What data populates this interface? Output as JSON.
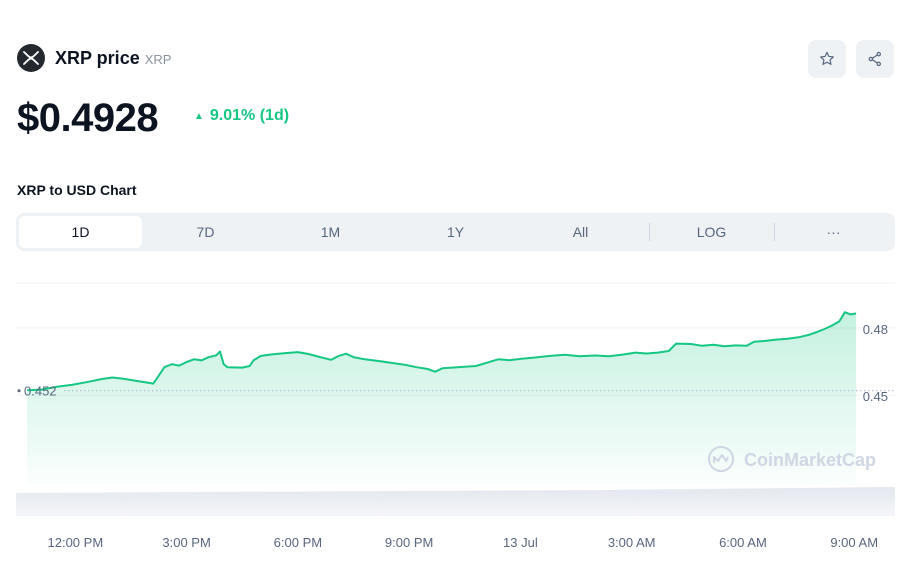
{
  "coin": {
    "name": "XRP price",
    "symbol": "XRP"
  },
  "price": "$0.4928",
  "change": {
    "arrow": "▲",
    "text": "9.01% (1d)"
  },
  "chart_heading": "XRP to USD Chart",
  "tabs": [
    {
      "label": "1D",
      "active": true
    },
    {
      "label": "7D"
    },
    {
      "label": "1M"
    },
    {
      "label": "1Y"
    },
    {
      "label": "All"
    },
    {
      "label": "LOG"
    },
    {
      "label": "···"
    }
  ],
  "icons": {
    "logo": "xrp-logo-icon",
    "star": "star-icon",
    "share": "share-icon"
  },
  "colors": {
    "line": "#16c784",
    "text": "#0d1421",
    "muted": "#58667e",
    "tab_bg": "#eff2f5"
  },
  "chart_data": {
    "type": "area",
    "title": "XRP to USD Chart",
    "x_ticks": [
      "12:00 PM",
      "3:00 PM",
      "6:00 PM",
      "9:00 PM",
      "13 Jul",
      "3:00 AM",
      "6:00 AM",
      "9:00 AM"
    ],
    "x_tick_hours": [
      2,
      5,
      8,
      11,
      14,
      17,
      20,
      23
    ],
    "x_range_hours": [
      0.4,
      24.1
    ],
    "y_range": [
      0.41,
      0.5
    ],
    "y_ticks": [
      0.45,
      0.48
    ],
    "open_label": "0.452",
    "open_value": 0.452,
    "watermark": "CoinMarketCap",
    "series": [
      {
        "points": [
          [
            0.7,
            0.4522
          ],
          [
            1.1,
            0.4525
          ],
          [
            1.5,
            0.4538
          ],
          [
            1.9,
            0.4546
          ],
          [
            2.3,
            0.4558
          ],
          [
            2.7,
            0.4572
          ],
          [
            3.0,
            0.4579
          ],
          [
            3.3,
            0.4573
          ],
          [
            3.6,
            0.4565
          ],
          [
            3.9,
            0.4557
          ],
          [
            4.1,
            0.4552
          ],
          [
            4.2,
            0.4575
          ],
          [
            4.4,
            0.4625
          ],
          [
            4.6,
            0.4638
          ],
          [
            4.8,
            0.4632
          ],
          [
            5.0,
            0.4648
          ],
          [
            5.2,
            0.466
          ],
          [
            5.4,
            0.4655
          ],
          [
            5.6,
            0.467
          ],
          [
            5.8,
            0.4678
          ],
          [
            5.9,
            0.4695
          ],
          [
            6.0,
            0.4638
          ],
          [
            6.1,
            0.4625
          ],
          [
            6.5,
            0.4623
          ],
          [
            6.7,
            0.463
          ],
          [
            6.8,
            0.4655
          ],
          [
            7.0,
            0.4675
          ],
          [
            7.3,
            0.4682
          ],
          [
            7.7,
            0.4688
          ],
          [
            8.0,
            0.4692
          ],
          [
            8.3,
            0.4683
          ],
          [
            8.6,
            0.467
          ],
          [
            8.9,
            0.4658
          ],
          [
            9.1,
            0.4675
          ],
          [
            9.3,
            0.4685
          ],
          [
            9.5,
            0.467
          ],
          [
            9.8,
            0.466
          ],
          [
            10.2,
            0.4652
          ],
          [
            10.5,
            0.4645
          ],
          [
            10.9,
            0.4635
          ],
          [
            11.2,
            0.4625
          ],
          [
            11.5,
            0.4617
          ],
          [
            11.7,
            0.4605
          ],
          [
            11.9,
            0.462
          ],
          [
            12.3,
            0.4625
          ],
          [
            12.8,
            0.463
          ],
          [
            13.1,
            0.4645
          ],
          [
            13.4,
            0.466
          ],
          [
            13.7,
            0.4656
          ],
          [
            14.0,
            0.4662
          ],
          [
            14.4,
            0.4668
          ],
          [
            14.8,
            0.4675
          ],
          [
            15.2,
            0.468
          ],
          [
            15.6,
            0.4674
          ],
          [
            16.0,
            0.4677
          ],
          [
            16.4,
            0.4674
          ],
          [
            16.8,
            0.4682
          ],
          [
            17.1,
            0.469
          ],
          [
            17.4,
            0.4686
          ],
          [
            17.7,
            0.469
          ],
          [
            18.0,
            0.4697
          ],
          [
            18.2,
            0.473
          ],
          [
            18.6,
            0.4728
          ],
          [
            18.9,
            0.472
          ],
          [
            19.2,
            0.4725
          ],
          [
            19.5,
            0.4718
          ],
          [
            19.8,
            0.4722
          ],
          [
            20.1,
            0.472
          ],
          [
            20.3,
            0.4738
          ],
          [
            20.6,
            0.4742
          ],
          [
            20.9,
            0.4748
          ],
          [
            21.2,
            0.4752
          ],
          [
            21.5,
            0.4758
          ],
          [
            21.8,
            0.477
          ],
          [
            22.0,
            0.4782
          ],
          [
            22.2,
            0.4795
          ],
          [
            22.4,
            0.481
          ],
          [
            22.6,
            0.483
          ],
          [
            22.75,
            0.487
          ],
          [
            22.9,
            0.486
          ],
          [
            23.05,
            0.4864
          ]
        ]
      }
    ]
  }
}
